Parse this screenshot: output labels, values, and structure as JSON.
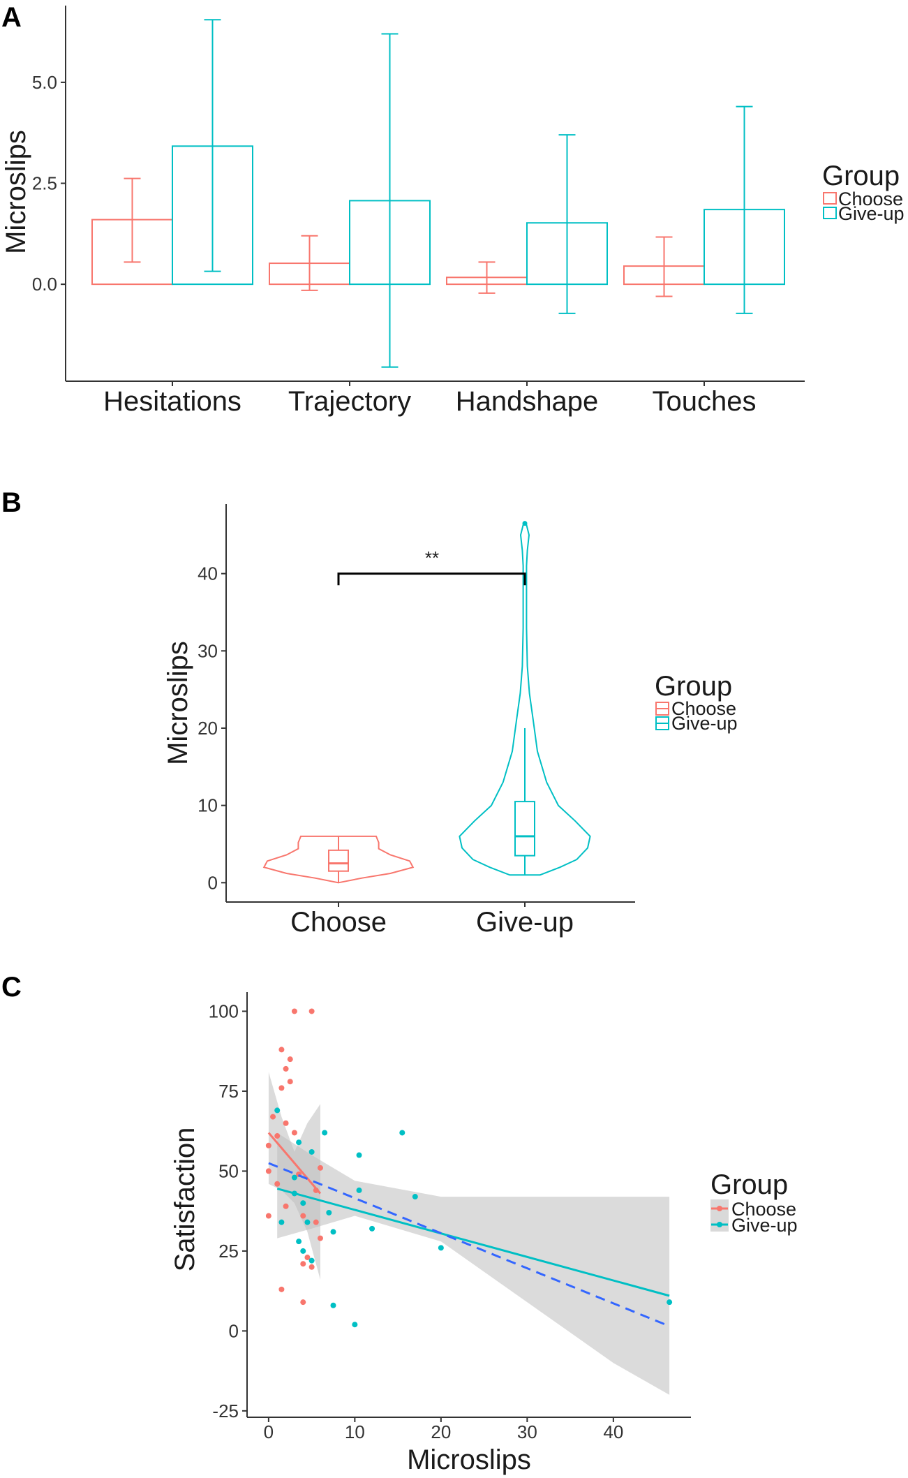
{
  "chart_data": [
    {
      "panel": "A",
      "type": "bar",
      "ylabel": "Microslips",
      "xlabel": "",
      "ylim": [
        -2.4,
        6.9
      ],
      "yticks": [
        0.0,
        2.5,
        5.0
      ],
      "ytick_labels": [
        "0.0",
        "2.5",
        "5.0"
      ],
      "categories": [
        "Hesitations",
        "Trajectory",
        "Handshape",
        "Touches"
      ],
      "legend": {
        "title": "Group",
        "position": "right",
        "items": [
          "Choose",
          "Give-up"
        ]
      },
      "series": [
        {
          "name": "Choose",
          "color": "#f8766d",
          "values": [
            1.6,
            0.52,
            0.17,
            0.45
          ],
          "err_low": [
            0.55,
            -0.15,
            -0.22,
            -0.3
          ],
          "err_high": [
            2.62,
            1.2,
            0.55,
            1.17
          ]
        },
        {
          "name": "Give-up",
          "color": "#00bfc4",
          "values": [
            3.42,
            2.07,
            1.52,
            1.85
          ],
          "err_low": [
            0.32,
            -2.05,
            -0.72,
            -0.72
          ],
          "err_high": [
            6.55,
            6.2,
            3.7,
            4.4
          ]
        }
      ]
    },
    {
      "panel": "B",
      "type": "violin",
      "ylabel": "Microslips",
      "ylim": [
        -2.5,
        49
      ],
      "yticks": [
        0,
        10,
        20,
        30,
        40
      ],
      "ytick_labels": [
        "0",
        "10",
        "20",
        "30",
        "40"
      ],
      "categories": [
        "Choose",
        "Give-up"
      ],
      "legend": {
        "title": "Group",
        "position": "right",
        "items": [
          "Choose",
          "Give-up"
        ]
      },
      "significance": {
        "label": "**",
        "between": [
          "Choose",
          "Give-up"
        ],
        "y": 40,
        "tick_bottom": 38.5
      },
      "series": [
        {
          "name": "Choose",
          "color": "#f8766d",
          "violin": [
            [
              0,
              0.0
            ],
            [
              0.6,
              0.28
            ],
            [
              1.2,
              0.62
            ],
            [
              2.0,
              0.89
            ],
            [
              2.8,
              0.85
            ],
            [
              3.6,
              0.62
            ],
            [
              4.4,
              0.48
            ],
            [
              5.2,
              0.48
            ],
            [
              6.0,
              0.45
            ]
          ],
          "box": {
            "whisker_low": 0,
            "q1": 1.5,
            "median": 2.5,
            "q3": 4.2,
            "whisker_high": 6
          }
        },
        {
          "name": "Give-up",
          "color": "#00bfc4",
          "violin": [
            [
              1.0,
              0.18
            ],
            [
              2.0,
              0.42
            ],
            [
              3.0,
              0.62
            ],
            [
              4.5,
              0.75
            ],
            [
              6.0,
              0.78
            ],
            [
              8.0,
              0.6
            ],
            [
              10.0,
              0.4
            ],
            [
              13.0,
              0.26
            ],
            [
              17.0,
              0.15
            ],
            [
              21.0,
              0.1
            ],
            [
              24.5,
              0.055
            ],
            [
              28.0,
              0.03
            ],
            [
              33.0,
              0.02
            ],
            [
              38.0,
              0.02
            ],
            [
              41.0,
              0.02
            ],
            [
              43.0,
              0.03
            ],
            [
              45.0,
              0.05
            ],
            [
              46.3,
              0.02
            ]
          ],
          "box": {
            "whisker_low": 1,
            "q1": 3.5,
            "median": 6,
            "q3": 10.5,
            "whisker_high": 20
          },
          "outliers": [
            46.5
          ]
        }
      ]
    },
    {
      "panel": "C",
      "type": "scatter",
      "xlabel": "Microslips",
      "ylabel": "Satisfaction",
      "xlim": [
        -2.5,
        49
      ],
      "ylim": [
        -27,
        106
      ],
      "xticks": [
        0,
        10,
        20,
        30,
        40
      ],
      "xtick_labels": [
        "0",
        "10",
        "20",
        "30",
        "40"
      ],
      "yticks": [
        -25,
        0,
        25,
        50,
        75,
        100
      ],
      "ytick_labels": [
        "-25",
        "0",
        "25",
        "50",
        "75",
        "100"
      ],
      "legend": {
        "title": "Group",
        "position": "right",
        "items": [
          "Choose",
          "Give-up"
        ]
      },
      "overall_fit": {
        "color": "#3366ff",
        "style": "dashed",
        "x": [
          0,
          46.5
        ],
        "y": [
          52.5,
          1.5
        ]
      },
      "series": [
        {
          "name": "Choose",
          "color": "#f8766d",
          "points": [
            [
              0,
              58
            ],
            [
              0,
              50
            ],
            [
              0,
              36
            ],
            [
              0.5,
              67
            ],
            [
              1,
              46
            ],
            [
              1,
              61
            ],
            [
              1.5,
              13
            ],
            [
              1.5,
              76
            ],
            [
              1.5,
              88
            ],
            [
              2,
              39
            ],
            [
              2,
              65
            ],
            [
              2,
              82
            ],
            [
              2.5,
              85
            ],
            [
              2.5,
              78
            ],
            [
              3,
              100
            ],
            [
              3,
              62
            ],
            [
              3.5,
              49
            ],
            [
              4,
              36
            ],
            [
              4,
              21
            ],
            [
              4,
              9
            ],
            [
              4.5,
              23
            ],
            [
              5,
              100
            ],
            [
              5,
              20
            ],
            [
              5.5,
              44
            ],
            [
              6,
              51
            ],
            [
              6,
              29
            ],
            [
              5.5,
              34
            ]
          ],
          "fit": {
            "x": [
              0,
              6
            ],
            "y": [
              62,
              43
            ]
          },
          "band": {
            "x": [
              0,
              1.5,
              3,
              4.5,
              6
            ],
            "lower": [
              46,
              44,
              40,
              31,
              16
            ],
            "upper": [
              81,
              67,
              56,
              65,
              71
            ]
          }
        },
        {
          "name": "Give-up",
          "color": "#00bfc4",
          "points": [
            [
              1,
              69
            ],
            [
              1.5,
              34
            ],
            [
              3,
              43
            ],
            [
              3.5,
              59
            ],
            [
              3.5,
              28
            ],
            [
              4,
              25
            ],
            [
              4,
              40
            ],
            [
              5,
              22
            ],
            [
              5,
              56
            ],
            [
              6.5,
              62
            ],
            [
              7,
              37
            ],
            [
              7.5,
              31
            ],
            [
              7.5,
              8
            ],
            [
              10,
              2
            ],
            [
              10.5,
              55
            ],
            [
              10.5,
              44
            ],
            [
              12,
              32
            ],
            [
              15.5,
              62
            ],
            [
              17,
              42
            ],
            [
              20,
              26
            ],
            [
              46.5,
              9
            ],
            [
              3,
              48
            ],
            [
              4.5,
              34
            ]
          ],
          "fit": {
            "x": [
              1,
              46.5
            ],
            "y": [
              44.5,
              11
            ]
          },
          "band": {
            "x": [
              1,
              5,
              10,
              20,
              30,
              40,
              46.5
            ],
            "lower": [
              29,
              32,
              36,
              28,
              9,
              -10,
              -20
            ],
            "upper": [
              62,
              55,
              47,
              42,
              42,
              42,
              42
            ]
          }
        }
      ]
    }
  ]
}
